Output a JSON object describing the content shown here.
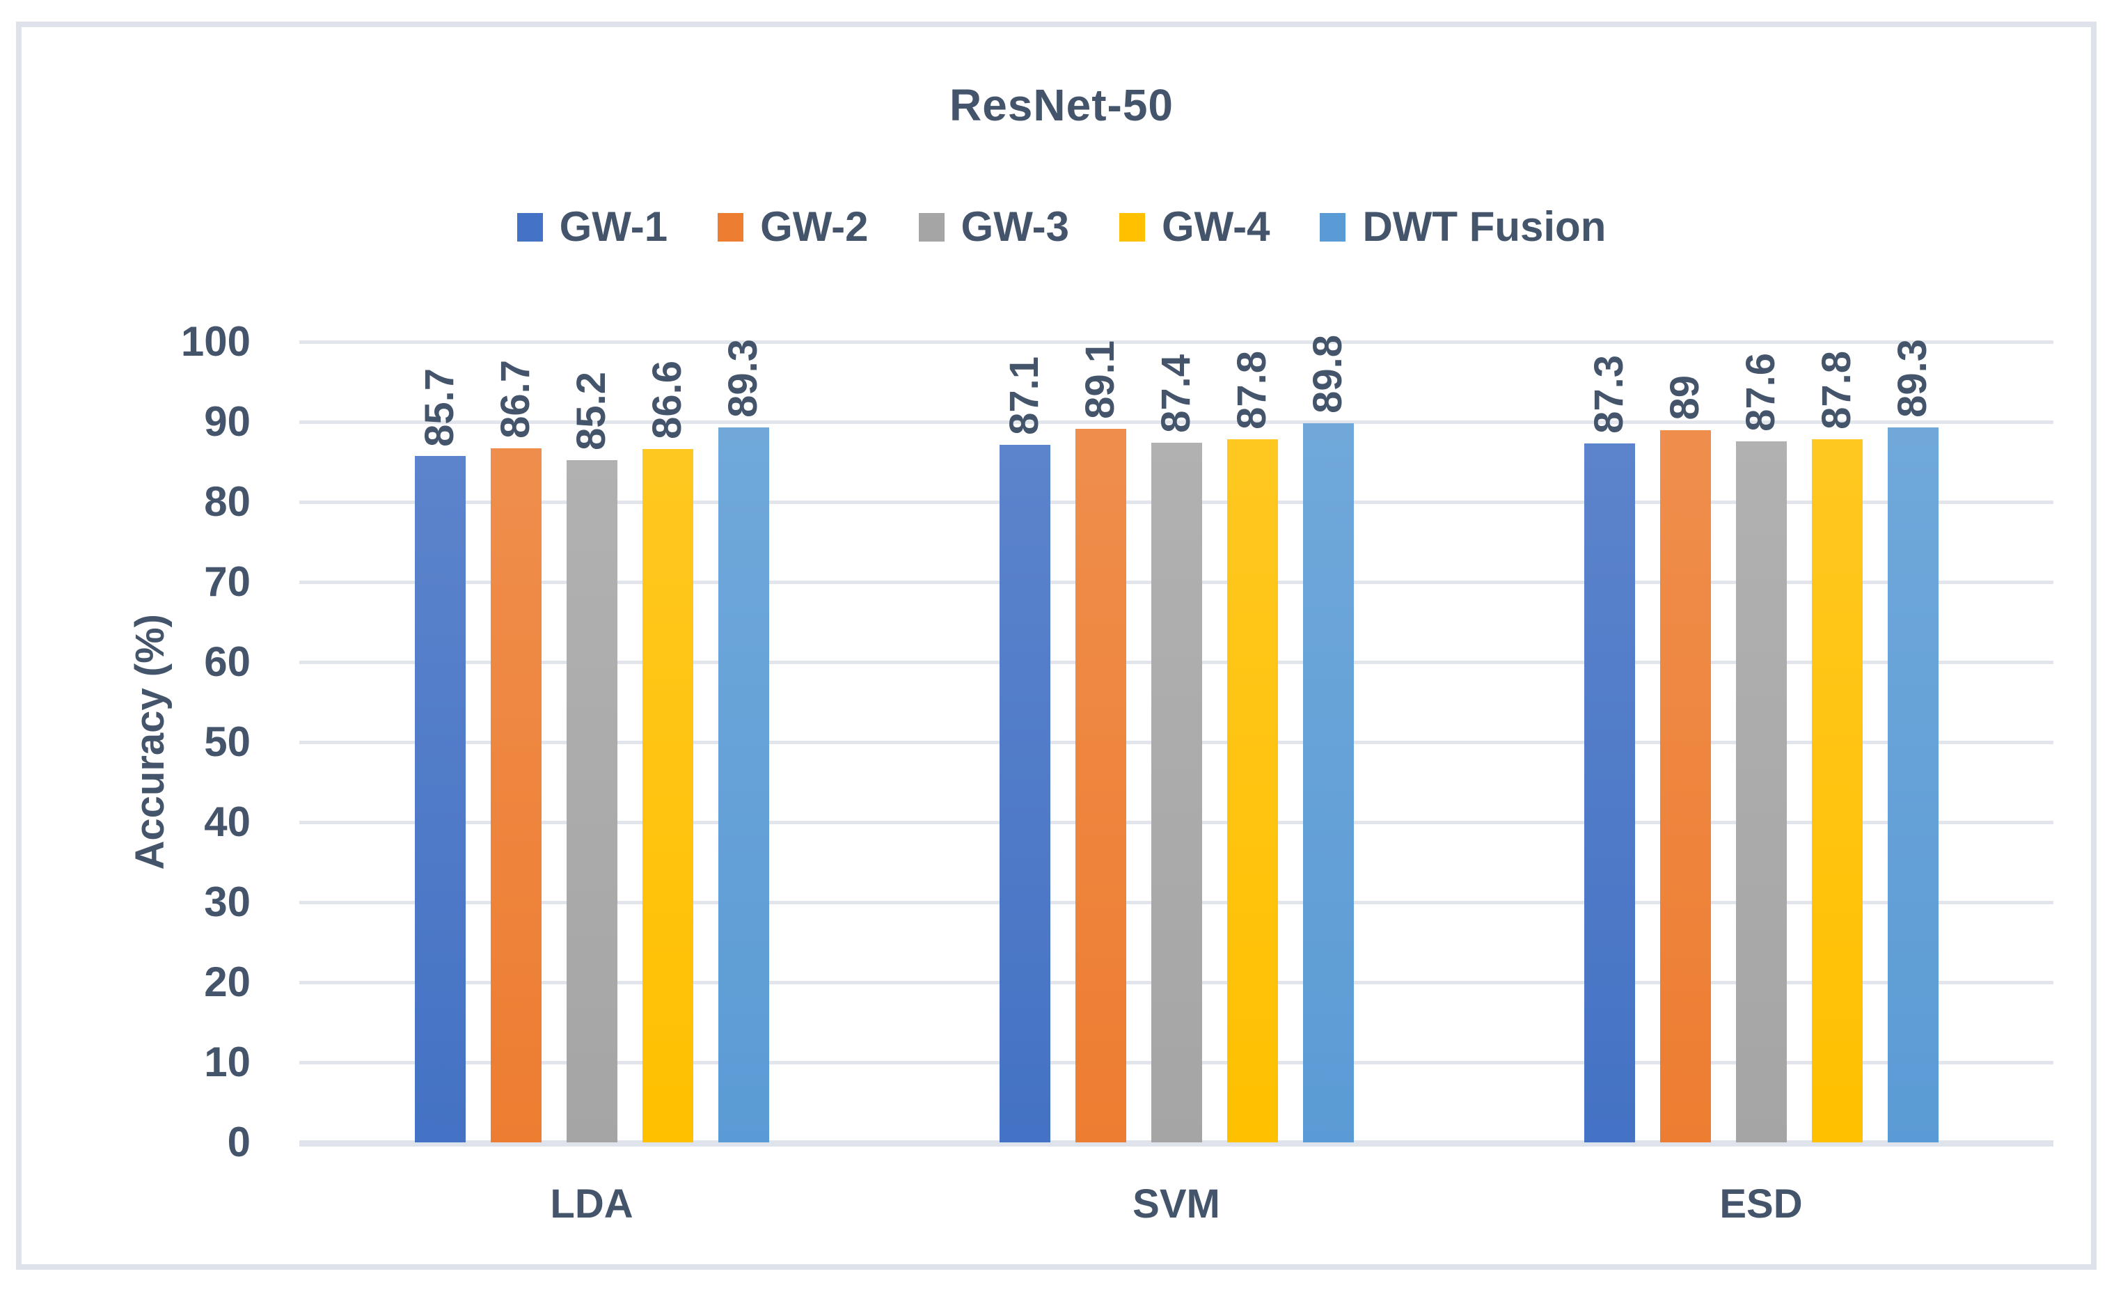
{
  "chart_data": {
    "type": "bar",
    "title": "ResNet-50",
    "ylabel": "Accuracy (%)",
    "xlabel": "",
    "categories": [
      "LDA",
      "SVM",
      "ESD"
    ],
    "series": [
      {
        "name": "GW-1",
        "color": "#4472C4",
        "values": [
          85.7,
          87.1,
          87.3
        ]
      },
      {
        "name": "GW-2",
        "color": "#ED7D31",
        "values": [
          86.7,
          89.1,
          89
        ]
      },
      {
        "name": "GW-3",
        "color": "#A5A5A5",
        "values": [
          85.2,
          87.4,
          87.6
        ]
      },
      {
        "name": "GW-4",
        "color": "#FFC000",
        "values": [
          86.6,
          87.8,
          87.8
        ]
      },
      {
        "name": "DWT Fusion",
        "color": "#5B9BD5",
        "values": [
          89.3,
          89.8,
          89.3
        ]
      }
    ],
    "ylim": [
      0,
      100
    ],
    "yticks": [
      0,
      10,
      20,
      30,
      40,
      50,
      60,
      70,
      80,
      90,
      100
    ],
    "grid": true,
    "legend_position": "top",
    "data_labels_rotated": true
  },
  "colors": {
    "text": "#44546A",
    "gridline": "#e2e6ec",
    "frame_border": "#dde2eb"
  }
}
